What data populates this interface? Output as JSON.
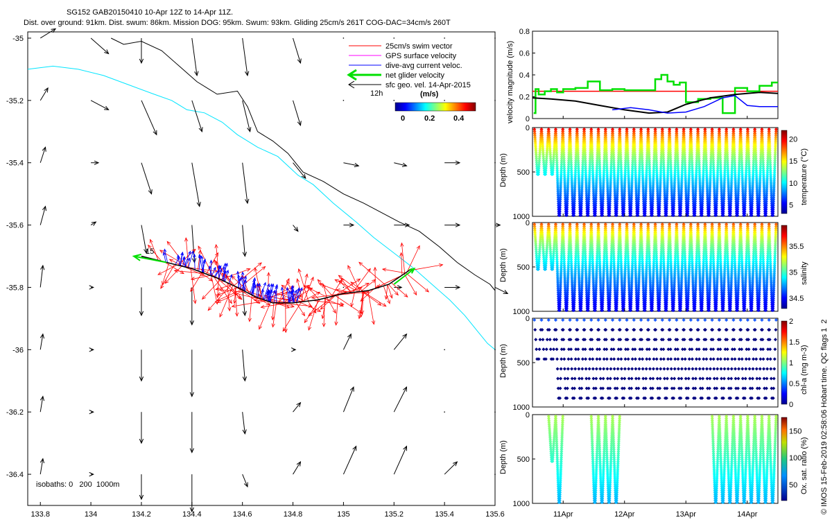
{
  "chart_data": [
    {
      "type": "map",
      "title_lines": [
        "SG152 GAB20150410 10-Apr 12Z to 14-Apr 11Z.",
        "Dist. over ground: 91km. Dist. swum: 86km. Mission DOG: 95km. Swum: 93km. Gliding 25cm/s 261T COG-DAC=34cm/s 260T"
      ],
      "xlim": [
        133.75,
        135.6
      ],
      "ylim": [
        -36.5,
        -34.98
      ],
      "xticks": [
        133.8,
        134,
        134.2,
        134.4,
        134.6,
        134.8,
        135,
        135.2,
        135.4,
        135.6
      ],
      "yticks": [
        -35,
        -35.2,
        -35.4,
        -35.6,
        -35.8,
        -36,
        -36.2,
        -36.4
      ],
      "legend": [
        {
          "label": "25cm/s swim vector",
          "color": "#ff0000"
        },
        {
          "label": "GPS surface velocity",
          "color": "#ff00ff"
        },
        {
          "label": "dive-avg current veloc.",
          "color": "#0000ff"
        },
        {
          "label": "net glider velocity",
          "color": "#00e000"
        },
        {
          "label": "sfc geo. vel. 14-Apr-2015",
          "color": "#000000"
        }
      ],
      "legend_12h": "12h",
      "colorbar": {
        "unit": "(m/s)",
        "range": [
          0,
          0.5
        ],
        "ticks": [
          "0",
          "0.2",
          "0.4"
        ]
      },
      "isobaths_label": "isobaths: 0   200  1000m",
      "track_label": "15",
      "isobath_200m": [
        [
          133.75,
          -35.1
        ],
        [
          133.85,
          -35.09
        ],
        [
          133.95,
          -35.1
        ],
        [
          134.05,
          -35.12
        ],
        [
          134.15,
          -35.15
        ],
        [
          134.25,
          -35.18
        ],
        [
          134.32,
          -35.2
        ],
        [
          134.38,
          -35.23
        ],
        [
          134.45,
          -35.24
        ],
        [
          134.52,
          -35.27
        ],
        [
          134.58,
          -35.31
        ],
        [
          134.66,
          -35.35
        ],
        [
          134.74,
          -35.38
        ],
        [
          134.82,
          -35.44
        ],
        [
          134.88,
          -35.47
        ],
        [
          134.96,
          -35.53
        ],
        [
          135.05,
          -35.59
        ],
        [
          135.12,
          -35.64
        ],
        [
          135.2,
          -35.69
        ],
        [
          135.28,
          -35.74
        ],
        [
          135.35,
          -35.79
        ],
        [
          135.42,
          -35.84
        ],
        [
          135.48,
          -35.89
        ],
        [
          135.53,
          -35.94
        ],
        [
          135.57,
          -35.98
        ],
        [
          135.6,
          -36.0
        ]
      ],
      "isobath_1000m": [
        [
          134.08,
          -35.0
        ],
        [
          134.13,
          -35.02
        ],
        [
          134.2,
          -35.01
        ],
        [
          134.28,
          -35.04
        ],
        [
          134.35,
          -35.09
        ],
        [
          134.42,
          -35.14
        ],
        [
          134.5,
          -35.18
        ],
        [
          134.58,
          -35.17
        ],
        [
          134.62,
          -35.22
        ],
        [
          134.66,
          -35.3
        ],
        [
          134.72,
          -35.33
        ],
        [
          134.78,
          -35.37
        ],
        [
          134.84,
          -35.43
        ],
        [
          134.92,
          -35.46
        ],
        [
          135.0,
          -35.5
        ],
        [
          135.08,
          -35.53
        ],
        [
          135.15,
          -35.56
        ],
        [
          135.22,
          -35.59
        ],
        [
          135.3,
          -35.62
        ],
        [
          135.38,
          -35.67
        ],
        [
          135.45,
          -35.72
        ],
        [
          135.52,
          -35.76
        ],
        [
          135.58,
          -35.79
        ],
        [
          135.6,
          -35.81
        ]
      ],
      "glider_track": [
        [
          134.2,
          -35.7
        ],
        [
          134.3,
          -35.72
        ],
        [
          134.4,
          -35.74
        ],
        [
          134.5,
          -35.77
        ],
        [
          134.58,
          -35.8
        ],
        [
          134.65,
          -35.83
        ],
        [
          134.72,
          -35.85
        ],
        [
          134.8,
          -35.85
        ],
        [
          134.9,
          -35.84
        ],
        [
          135.0,
          -35.82
        ],
        [
          135.1,
          -35.81
        ],
        [
          135.18,
          -35.79
        ],
        [
          135.27,
          -35.74
        ]
      ],
      "net_velocity_arrow": {
        "from": [
          134.3,
          -35.72
        ],
        "to": [
          134.17,
          -35.7
        ]
      },
      "geostrophic_grid_lon": [
        133.8,
        134.0,
        134.2,
        134.4,
        134.6,
        134.8,
        135.0,
        135.2,
        135.4,
        135.6
      ],
      "geostrophic_grid_lat": [
        -35.0,
        -35.2,
        -35.4,
        -35.6,
        -35.8,
        -36.0,
        -36.2,
        -36.4
      ],
      "geostrophic_vectors_lonlat": [
        [
          0.06,
          0.03,
          0.07,
          -0.05,
          0.0,
          -0.08,
          0.02,
          -0.12,
          0.02,
          -0.12,
          0.03,
          -0.08,
          0.0,
          0.0,
          0.0,
          0.0,
          0.0,
          0.0,
          0.0,
          0.0
        ],
        [
          0.03,
          0.04,
          0.07,
          -0.03,
          0.06,
          -0.11,
          0.04,
          -0.1,
          0.03,
          -0.1,
          0.03,
          -0.08,
          0.0,
          0.0,
          0.0,
          0.0,
          0.0,
          0.0,
          0.0,
          0.0
        ],
        [
          0.02,
          0.05,
          0.03,
          0.0,
          0.04,
          -0.1,
          0.03,
          -0.14,
          0.02,
          -0.13,
          0.05,
          -0.05,
          0.06,
          -0.01,
          0.05,
          -0.01,
          0.06,
          0.0,
          0.0,
          0.0
        ],
        [
          0.02,
          0.06,
          0.02,
          0.01,
          0.02,
          -0.09,
          0.01,
          -0.12,
          0.01,
          -0.1,
          0.02,
          -0.02,
          0.04,
          0.0,
          0.06,
          0.0,
          0.06,
          0.0,
          0.02,
          0.0
        ],
        [
          0.01,
          0.07,
          0.01,
          0.0,
          0.0,
          -0.09,
          0.0,
          -0.12,
          0.01,
          -0.09,
          0.0,
          0.0,
          0.0,
          0.0,
          0.03,
          0.0,
          0.06,
          0.0,
          0.05,
          -0.02
        ],
        [
          0.01,
          0.05,
          0.01,
          0.0,
          0.0,
          -0.1,
          0.0,
          -0.15,
          0.01,
          -0.1,
          0.01,
          0.0,
          0.03,
          0.05,
          0.05,
          0.05,
          0.0,
          0.0,
          0.0,
          0.0
        ],
        [
          0.01,
          0.05,
          0.01,
          0.0,
          0.0,
          -0.1,
          0.0,
          -0.13,
          0.01,
          -0.07,
          0.03,
          0.03,
          0.04,
          0.08,
          0.05,
          0.08,
          0.0,
          0.0,
          0.0,
          0.0
        ],
        [
          0.01,
          0.05,
          0.01,
          0.0,
          0.0,
          -0.08,
          0.0,
          -0.12,
          0.02,
          -0.04,
          0.03,
          0.04,
          0.05,
          0.09,
          0.05,
          0.09,
          0.05,
          0.04,
          0.0,
          0.0
        ]
      ]
    },
    {
      "type": "line",
      "ylabel": "velocity magnitude (m/s)",
      "ylim": [
        0,
        0.8
      ],
      "yticks": [
        "0",
        "0.2",
        "0.4",
        "0.6",
        "0.8"
      ],
      "x_days": [
        10.5,
        14.5
      ],
      "series": [
        {
          "name": "25cm/s swim vector",
          "color": "#ff0000",
          "x": [
            10.5,
            14.5
          ],
          "y": [
            0.25,
            0.25
          ]
        },
        {
          "name": "net glider velocity",
          "color": "#00e000",
          "x": [
            10.52,
            10.55,
            10.6,
            10.7,
            10.8,
            10.9,
            11.0,
            11.2,
            11.4,
            11.6,
            11.8,
            12.0,
            12.3,
            12.5,
            12.6,
            12.7,
            12.8,
            12.9,
            13.0,
            13.2,
            13.4,
            13.6,
            13.8,
            14.0,
            14.2,
            14.4,
            14.5
          ],
          "y": [
            0.05,
            0.27,
            0.22,
            0.25,
            0.27,
            0.24,
            0.27,
            0.28,
            0.34,
            0.26,
            0.27,
            0.26,
            0.26,
            0.36,
            0.4,
            0.34,
            0.31,
            0.33,
            0.15,
            0.18,
            0.19,
            0.05,
            0.28,
            0.25,
            0.3,
            0.33,
            0.3
          ]
        },
        {
          "name": "sfc geo. vel.",
          "color": "#000000",
          "x": [
            10.5,
            10.8,
            11.2,
            11.6,
            12.0,
            12.4,
            12.7,
            13.0,
            13.4,
            13.8,
            14.2,
            14.5
          ],
          "y": [
            0.19,
            0.18,
            0.16,
            0.12,
            0.08,
            0.05,
            0.06,
            0.13,
            0.19,
            0.22,
            0.24,
            0.23
          ]
        },
        {
          "name": "dive-avg current veloc.",
          "color": "#0000ff",
          "x": [
            11.8,
            12.1,
            12.4,
            12.7,
            13.0,
            13.3,
            13.6,
            13.8,
            14.0,
            14.2,
            14.5
          ],
          "y": [
            0.08,
            0.1,
            0.08,
            0.05,
            0.06,
            0.11,
            0.19,
            0.21,
            0.12,
            0.11,
            0.11
          ]
        }
      ]
    },
    {
      "type": "scatter",
      "ylabel": "Depth (m)",
      "ylim": [
        0,
        1000
      ],
      "yticks": [
        "0",
        "500",
        "1000"
      ],
      "colorbar_label": "temperature (°C)",
      "colorbar_range": [
        3,
        22
      ],
      "colorbar_ticks": [
        "5",
        "10",
        "15",
        "20"
      ]
    },
    {
      "type": "scatter",
      "ylabel": "Depth (m)",
      "ylim": [
        0,
        1000
      ],
      "yticks": [
        "0",
        "500",
        "1000"
      ],
      "colorbar_label": "salinity",
      "colorbar_range": [
        34.3,
        35.9
      ],
      "colorbar_ticks": [
        "34.5",
        "35",
        "35.5"
      ]
    },
    {
      "type": "scatter",
      "ylabel": "Depth (m)",
      "ylim": [
        0,
        1000
      ],
      "yticks": [
        "0",
        "500",
        "1000"
      ],
      "colorbar_label": "chl-a (mg m-3)",
      "colorbar_range": [
        0,
        2
      ],
      "colorbar_ticks": [
        "0",
        "0.5",
        "1",
        "1.5",
        "2"
      ]
    },
    {
      "type": "scatter",
      "ylabel": "Depth (m)",
      "ylim": [
        0,
        1000
      ],
      "yticks": [
        "0",
        "500",
        "1000"
      ],
      "colorbar_label": "Ox. sat. ratio (%)",
      "colorbar_range": [
        20,
        175
      ],
      "colorbar_ticks": [
        "50",
        "100",
        "150"
      ],
      "xticks": [
        "11Apr",
        "12Apr",
        "13Apr",
        "14Apr"
      ]
    }
  ],
  "profiles": {
    "time_start": 10.5,
    "time_end": 14.5,
    "count": 34,
    "deep_flags": [
      0,
      0,
      0,
      1,
      1,
      1,
      1,
      1,
      1,
      1,
      1,
      1,
      1,
      1,
      1,
      1,
      1,
      1,
      1,
      1,
      1,
      1,
      1,
      1,
      1,
      1,
      1,
      1,
      1,
      1,
      1,
      1,
      1,
      1
    ]
  },
  "side_text": "© IMOS 15-Feb-2019 02:58:06 Hobart time. QC flags 1  2"
}
